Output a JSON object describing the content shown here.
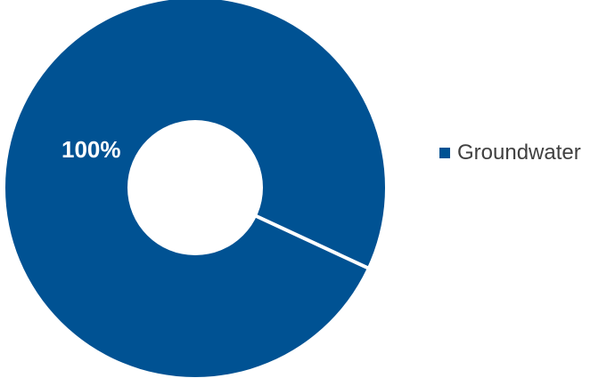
{
  "chart_data": {
    "type": "pie",
    "variant": "donut",
    "categories": [
      "Groundwater"
    ],
    "values": [
      100
    ],
    "data_labels": [
      "100%"
    ],
    "colors": [
      "#005293"
    ],
    "legend": "right",
    "title": ""
  }
}
